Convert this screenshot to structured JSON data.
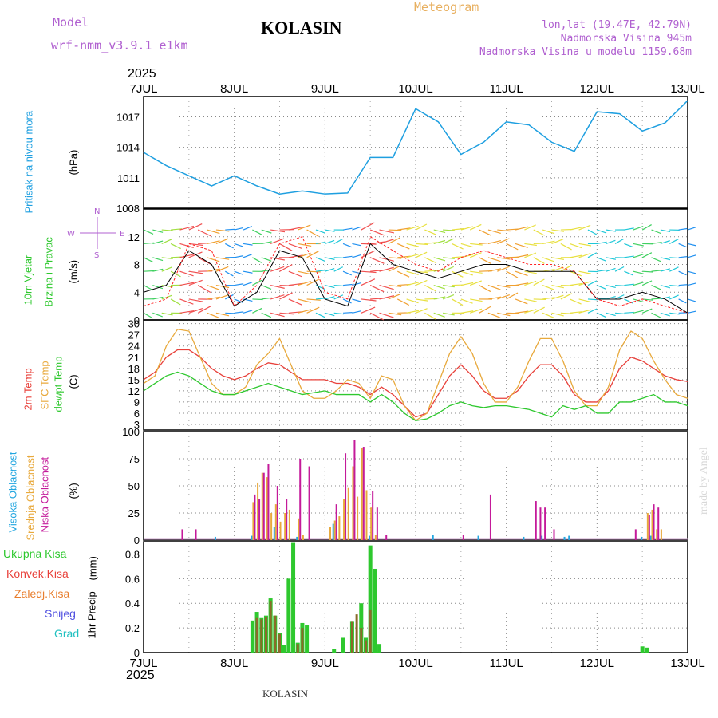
{
  "header": {
    "model_label": "Model",
    "model_value": "wrf-nmm_v3.9.1 e1km",
    "station": "KOLASIN",
    "product": "Meteogram",
    "lonlat": "lon,lat (19.47E, 42.79N)",
    "elevation": "Nadmorska Visina 945m",
    "model_elevation": "Nadmorska Visina u modelu 1159.68m",
    "year_top": "2025",
    "year_bottom": "2025",
    "footer": "KOLASIN",
    "credit": "made by Angel"
  },
  "colors": {
    "pressure": "#1e9fe0",
    "temp2m": "#e8403a",
    "sfctemp": "#e8a93c",
    "dewpt": "#2ec82e",
    "cloud_high": "#22a6e0",
    "cloud_mid": "#e8a93c",
    "cloud_low": "#c41a9a",
    "precip_total": "#2ec82e",
    "precip_conv": "#e8403a",
    "precip_frozen": "#e87d2c",
    "snow": "#5050e0",
    "hail": "#20c0c0",
    "wind_speed": "#000000",
    "wind_gust": "#ff2020",
    "label_purple": "#b060d0",
    "label_orange": "#e8b060"
  },
  "chart_data": [
    {
      "type": "line",
      "panel": "pressure",
      "ylabel": "Pritisak na nivou mora",
      "unit": "(hPa)",
      "ylim": [
        1008,
        1019
      ],
      "yticks": [
        1008,
        1011,
        1014,
        1017
      ],
      "xlabels": [
        "7JUL",
        "8JUL",
        "9JUL",
        "10JUL",
        "11JUL",
        "12JUL",
        "13JUL"
      ],
      "x": [
        0,
        0.25,
        0.5,
        0.75,
        1,
        1.25,
        1.5,
        1.75,
        2,
        2.25,
        2.5,
        2.75,
        3,
        3.25,
        3.5,
        3.75,
        4,
        4.25,
        4.5,
        4.75,
        5,
        5.25,
        5.5,
        5.75,
        6
      ],
      "values": [
        1013.5,
        1012.2,
        1011.2,
        1010.2,
        1011.2,
        1010.2,
        1009.4,
        1009.7,
        1009.4,
        1009.5,
        1013.0,
        1013.0,
        1017.8,
        1016.5,
        1013.3,
        1014.5,
        1016.5,
        1016.2,
        1014.5,
        1013.6,
        1017.5,
        1017.3,
        1015.6,
        1016.4,
        1018.6
      ],
      "grid": true
    },
    {
      "type": "line",
      "panel": "wind",
      "ylabel": "10m Vjetar",
      "ylabel2": "Brzina i Pravac",
      "unit": "(m/s)",
      "compass": [
        "N",
        "W",
        "E",
        "S"
      ],
      "ylim": [
        0,
        16
      ],
      "yticks": [
        0,
        4,
        8,
        12
      ],
      "x": [
        0,
        0.25,
        0.5,
        0.75,
        1,
        1.25,
        1.5,
        1.75,
        2,
        2.25,
        2.5,
        2.75,
        3,
        3.25,
        3.5,
        3.75,
        4,
        4.25,
        4.5,
        4.75,
        5,
        5.25,
        5.5,
        5.75,
        6
      ],
      "series": [
        {
          "values": [
            4,
            5,
            10,
            8,
            2,
            4,
            10,
            9,
            3,
            2,
            11,
            8,
            7,
            6,
            7,
            8,
            8,
            7,
            7,
            7,
            3,
            3,
            4,
            3,
            1
          ]
        },
        {
          "values": [
            2,
            3,
            11,
            10,
            2,
            5,
            11,
            12,
            4,
            3,
            12,
            10,
            8,
            7,
            9,
            10,
            9,
            8,
            8,
            7,
            3,
            2,
            3,
            2,
            1
          ]
        }
      ],
      "grid": true
    },
    {
      "type": "line",
      "panel": "temperature",
      "ylabel": "2m Temp",
      "ylabel2": "SFC Temp",
      "ylabel3": "dewpt Temp",
      "unit": "(C)",
      "ylim": [
        1.5,
        31
      ],
      "yticks": [
        3,
        6,
        9,
        12,
        15,
        18,
        21,
        24,
        27,
        30
      ],
      "x": [
        0,
        0.125,
        0.25,
        0.375,
        0.5,
        0.625,
        0.75,
        0.875,
        1,
        1.125,
        1.25,
        1.375,
        1.5,
        1.625,
        1.75,
        1.875,
        2,
        2.125,
        2.25,
        2.375,
        2.5,
        2.625,
        2.75,
        2.875,
        3,
        3.125,
        3.25,
        3.375,
        3.5,
        3.625,
        3.75,
        3.875,
        4,
        4.125,
        4.25,
        4.375,
        4.5,
        4.625,
        4.75,
        4.875,
        5,
        5.125,
        5.25,
        5.375,
        5.5,
        5.625,
        5.75,
        5.875,
        6
      ],
      "series": [
        {
          "values": [
            15,
            17,
            21,
            23,
            23,
            21,
            18,
            16,
            15,
            16,
            18,
            19.5,
            19,
            17,
            15,
            15,
            15,
            14,
            14,
            13,
            11,
            13,
            11,
            8,
            5,
            6,
            11,
            16,
            19,
            16,
            12,
            10,
            10,
            12,
            16,
            19,
            19,
            16,
            11,
            9,
            9,
            12,
            18,
            21,
            20,
            18,
            16,
            15,
            14.5
          ]
        },
        {
          "values": [
            14,
            16,
            24,
            28.5,
            28,
            21,
            14,
            11,
            11,
            13,
            19,
            22,
            26,
            19,
            12,
            10,
            10,
            12,
            15,
            14,
            10,
            16,
            15,
            8,
            4,
            6,
            14,
            22,
            26.5,
            22,
            14,
            9,
            9,
            13,
            20,
            26,
            26,
            20,
            12,
            8,
            8,
            13,
            23,
            28,
            26,
            20,
            15,
            11,
            10
          ]
        },
        {
          "values": [
            12,
            14,
            16,
            17,
            16,
            14,
            12,
            11,
            11,
            12,
            13,
            14,
            13,
            12,
            11,
            11.5,
            12,
            11,
            11,
            11,
            9,
            11,
            9,
            6,
            4,
            4.5,
            6,
            8,
            9,
            8,
            7.5,
            8,
            8,
            7.5,
            7,
            6,
            5,
            8,
            7,
            8,
            6,
            6,
            9,
            9,
            10,
            11,
            9,
            9,
            8
          ]
        }
      ],
      "grid": true
    },
    {
      "type": "bar",
      "panel": "clouds",
      "ylabel": "Visoka Oblacnost",
      "ylabel2": "Srednja Oblacnost",
      "ylabel3": "Niska Oblacnost",
      "unit": "(%)",
      "ylim": [
        0,
        100
      ],
      "yticks": [
        0,
        25,
        50,
        75,
        100
      ],
      "series": [
        {
          "x": [
            0.8,
            1.2,
            1.45,
            1.7,
            2.1,
            2.5,
            3.2,
            3.7,
            4.2,
            4.4,
            4.65,
            4.7,
            5.5,
            5.6
          ],
          "values": [
            3,
            4,
            12,
            3,
            15,
            4,
            5,
            4,
            3,
            4,
            3,
            4,
            3,
            4
          ]
        },
        {
          "x": [
            1.2,
            1.25,
            1.3,
            1.35,
            1.4,
            1.45,
            1.5,
            1.55,
            1.6,
            1.7,
            1.75,
            2.05,
            2.1,
            2.15,
            2.2,
            2.25,
            2.3,
            2.35,
            2.4,
            2.45,
            2.5,
            2.55,
            5.55,
            5.6,
            5.65,
            5.7
          ],
          "values": [
            35,
            53,
            62,
            58,
            25,
            33,
            17,
            25,
            28,
            20,
            5,
            12,
            18,
            22,
            38,
            48,
            68,
            40,
            85,
            46,
            30,
            5,
            25,
            28,
            10,
            10
          ]
        },
        {
          "x": [
            0.4,
            0.55,
            1.2,
            1.25,
            1.3,
            1.35,
            1.45,
            1.55,
            1.7,
            1.8,
            2.1,
            2.2,
            2.3,
            2.4,
            2.5,
            2.55,
            2.65,
            3.5,
            3.8,
            4.3,
            4.35,
            4.4,
            4.5,
            5.4,
            5.55,
            5.6,
            5.65
          ],
          "values": [
            10,
            10,
            42,
            38,
            62,
            70,
            50,
            38,
            75,
            68,
            33,
            80,
            92,
            86,
            45,
            30,
            5,
            5,
            42,
            36,
            30,
            30,
            10,
            10,
            23,
            33,
            30
          ]
        }
      ],
      "grid": true
    },
    {
      "type": "bar",
      "panel": "precipitation",
      "ylabel": "1hr Precip",
      "unit": "(mm)",
      "legend": [
        "Ukupna Kisa",
        "Konvek.Kisa",
        "Zaledj.Kisa",
        "Snijeg",
        "Grad"
      ],
      "ylim": [
        0,
        0.9
      ],
      "yticks": [
        0,
        0.2,
        0.4,
        0.6,
        0.8
      ],
      "series": [
        {
          "name": "Ukupna Kisa",
          "x": [
            1.2,
            1.25,
            1.3,
            1.35,
            1.4,
            1.45,
            1.5,
            1.55,
            1.6,
            1.65,
            1.7,
            1.75,
            1.8,
            2.1,
            2.2,
            2.3,
            2.4,
            2.45,
            2.5,
            2.55,
            2.6,
            5.5,
            5.55
          ],
          "values": [
            0.26,
            0.33,
            0.28,
            0.3,
            0.44,
            0.3,
            0.16,
            0.06,
            0.6,
            0.89,
            0.08,
            0.24,
            0.22,
            0.03,
            0.12,
            0.25,
            0.4,
            0.12,
            0.87,
            0.68,
            0.07,
            0.05,
            0.04
          ]
        },
        {
          "name": "Konvek.Kisa",
          "x": [
            1.25,
            1.3,
            1.35,
            1.4,
            1.45,
            1.5,
            1.7,
            1.75,
            2.3,
            2.35,
            2.4,
            2.45,
            2.5
          ],
          "values": [
            0.28,
            0.27,
            0.29,
            0.42,
            0.3,
            0.15,
            0.07,
            0.2,
            0.25,
            0.31,
            0.2,
            0.1,
            0.35
          ]
        },
        {
          "name": "Zaledj.Kisa",
          "x": [],
          "values": []
        },
        {
          "name": "Snijeg",
          "x": [],
          "values": []
        },
        {
          "name": "Grad",
          "x": [],
          "values": []
        }
      ],
      "grid": true
    }
  ]
}
